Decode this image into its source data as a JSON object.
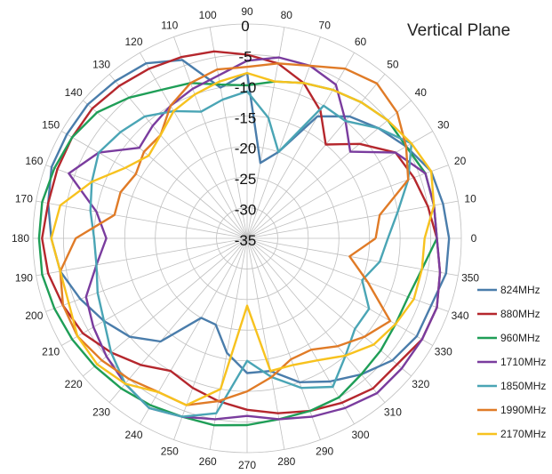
{
  "chart_data": {
    "type": "line",
    "subtype": "polar",
    "title": "Vertical Plane",
    "angle_unit": "degrees",
    "angle_ticks": [
      0,
      10,
      20,
      30,
      40,
      50,
      60,
      70,
      80,
      90,
      100,
      110,
      120,
      130,
      140,
      150,
      160,
      170,
      180,
      190,
      200,
      210,
      220,
      230,
      240,
      250,
      260,
      270,
      280,
      290,
      300,
      310,
      320,
      330,
      340,
      350
    ],
    "radial_ticks": [
      0,
      -5,
      -10,
      -15,
      -20,
      -25,
      -30,
      -35
    ],
    "rlim": [
      -35,
      0
    ],
    "grid": true,
    "legend_position": "right",
    "series": [
      {
        "name": "824MHz",
        "color": "#4a7dab",
        "values": [
          -2,
          -2.5,
          -3,
          -5,
          -7,
          -9,
          -12,
          -20,
          -22.5,
          -8,
          -10,
          -4,
          -2,
          -1.5,
          -1,
          -1,
          -1,
          -2,
          -3,
          -4,
          -6,
          -8,
          -10,
          -13,
          -20,
          -20,
          -16,
          -13,
          -13,
          -10,
          -8,
          -6,
          -4,
          -3,
          -3,
          -2
        ]
      },
      {
        "name": "880MHz",
        "color": "#b5272d",
        "values": [
          -4,
          -5,
          -6,
          -7,
          -11,
          -15,
          -11,
          -8,
          -6,
          -5,
          -4,
          -3.5,
          -3,
          -2.5,
          -2,
          -2,
          -2,
          -2,
          -1.5,
          -2,
          -3,
          -4,
          -6,
          -8,
          -10,
          -9,
          -8,
          -7,
          -6,
          -5,
          -4,
          -3,
          -3,
          -2,
          -2,
          -3
        ]
      },
      {
        "name": "960MHz",
        "color": "#1f9e57",
        "values": [
          -4,
          -4,
          -4,
          -5,
          -5,
          -6,
          -7,
          -8,
          -9,
          -10,
          -9.5,
          -8,
          -7,
          -5,
          -3,
          -2,
          -1.5,
          -1,
          -1,
          -1,
          -1.5,
          -2,
          -2.5,
          -3,
          -3.5,
          -4,
          -4,
          -4.5,
          -5,
          -5,
          -5,
          -6,
          -6.5,
          -7,
          -7,
          -6
        ]
      },
      {
        "name": "1710MHz",
        "color": "#7a3c9e",
        "values": [
          -4,
          -4,
          -4,
          -7,
          -13,
          -10,
          -6,
          -5,
          -5,
          -6,
          -8,
          -9,
          -10,
          -11,
          -12,
          -7,
          -4,
          -10,
          -12,
          -10,
          -7,
          -6,
          -5,
          -4,
          -3,
          -4,
          -5,
          -6,
          -5,
          -4,
          -3,
          -2,
          -2,
          -2,
          -2,
          -3
        ]
      },
      {
        "name": "1850MHz",
        "color": "#4aa5b5",
        "values": [
          -12,
          -10,
          -7,
          -4,
          -7,
          -10,
          -10,
          -20,
          -15,
          -11,
          -12,
          -13,
          -11,
          -9,
          -8,
          -7,
          -8,
          -9,
          -10,
          -10,
          -9,
          -8,
          -6,
          -4,
          -3,
          -4,
          -6,
          -15,
          -12,
          -9,
          -7,
          -10,
          -12,
          -12,
          -15,
          -13
        ]
      },
      {
        "name": "1990MHz",
        "color": "#e07b27",
        "values": [
          -14,
          -13,
          -7,
          -5,
          -3,
          -2,
          -3,
          -5,
          -6,
          -7,
          -7,
          -8,
          -10,
          -13,
          -13,
          -14,
          -13,
          -13,
          -7,
          -4,
          -3,
          -3,
          -4,
          -5,
          -6,
          -6,
          -8,
          -10,
          -12,
          -14,
          -14,
          -12,
          -10,
          -8,
          -14,
          -18
        ]
      },
      {
        "name": "2170MHz",
        "color": "#f7c21e",
        "values": [
          -6,
          -4,
          -3,
          -4,
          -5,
          -6,
          -7,
          -8,
          -9,
          -8,
          -9,
          -10,
          -11,
          -13,
          -14,
          -12,
          -8,
          -4,
          -3,
          -4,
          -4,
          -3,
          -3,
          -4,
          -6,
          -6,
          -10,
          -24,
          -13,
          -13,
          -12,
          -10,
          -8,
          -7,
          -6,
          -6
        ]
      }
    ]
  }
}
